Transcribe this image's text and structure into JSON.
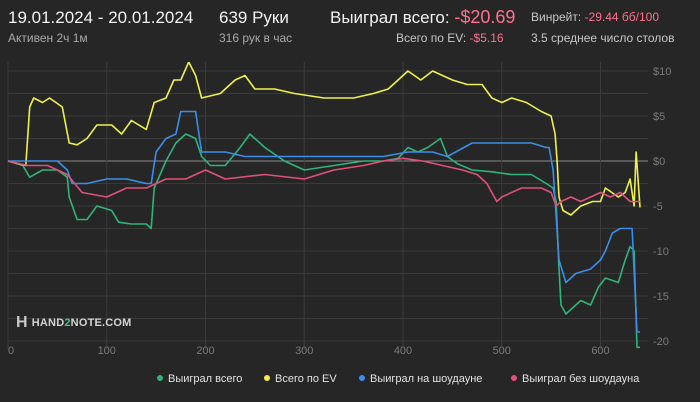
{
  "header": {
    "date_range": "19.01.2024 - 20.01.2024",
    "active_time": "Активен 2ч 1м",
    "hands": "639 Руки",
    "hands_rate": "316 рук в час",
    "won_label": "Выиграл всего:",
    "won_value": "-$20.69",
    "ev_label": "Всего по EV:",
    "ev_value": "-$5.16",
    "winrate_label": "Винрейт:",
    "winrate_value": "-29.44 бб/100",
    "avg_tables": "3.5 среднее число столов"
  },
  "watermark": {
    "prefix": "HAND",
    "two": "2",
    "suffix": "NOTE.COM"
  },
  "colors": {
    "background": "#262626",
    "grid": "#3a3a3a",
    "zero_line": "#8a8a8a",
    "won": "#2fb47c",
    "ev": "#f0f04a",
    "showdown": "#3a8ee8",
    "nonshowdown": "#e0507a",
    "negative": "#ff6f8f"
  },
  "chart_data": {
    "type": "line",
    "xlim": [
      0,
      640
    ],
    "ylim": [
      -21,
      11
    ],
    "x_ticks": [
      0,
      100,
      200,
      300,
      400,
      500,
      600
    ],
    "y_ticks": [
      -20,
      -15,
      -10,
      -5,
      0,
      5,
      10
    ],
    "x_tick_labels": [
      "0",
      "100",
      "200",
      "300",
      "400",
      "500",
      "600"
    ],
    "y_tick_labels": [
      "-20",
      "-15",
      "-10",
      "-5",
      "$0",
      "$5",
      "$10"
    ],
    "grid": true,
    "legend_position": "bottom",
    "series": [
      {
        "name": "Выиграл всего",
        "color": "#2fb47c",
        "points": [
          [
            0,
            0
          ],
          [
            15,
            -0.5
          ],
          [
            22,
            -1.8
          ],
          [
            35,
            -1
          ],
          [
            50,
            -1
          ],
          [
            60,
            -1.8
          ],
          [
            62,
            -4
          ],
          [
            70,
            -6.5
          ],
          [
            80,
            -6.5
          ],
          [
            90,
            -5
          ],
          [
            105,
            -5.5
          ],
          [
            112,
            -6.8
          ],
          [
            125,
            -7
          ],
          [
            140,
            -7
          ],
          [
            145,
            -7.5
          ],
          [
            148,
            -3
          ],
          [
            160,
            0
          ],
          [
            170,
            2
          ],
          [
            180,
            3
          ],
          [
            190,
            2.5
          ],
          [
            196,
            0.5
          ],
          [
            205,
            -0.5
          ],
          [
            220,
            -0.5
          ],
          [
            235,
            1.5
          ],
          [
            245,
            3
          ],
          [
            260,
            1.5
          ],
          [
            280,
            0
          ],
          [
            300,
            -1
          ],
          [
            330,
            -0.5
          ],
          [
            360,
            0
          ],
          [
            380,
            0
          ],
          [
            395,
            0.3
          ],
          [
            405,
            1.5
          ],
          [
            415,
            1
          ],
          [
            425,
            1.5
          ],
          [
            438,
            2.5
          ],
          [
            445,
            0.5
          ],
          [
            455,
            -0.3
          ],
          [
            470,
            -1
          ],
          [
            490,
            -1.2
          ],
          [
            510,
            -1.5
          ],
          [
            530,
            -1.5
          ],
          [
            545,
            -2.5
          ],
          [
            552,
            -3
          ],
          [
            555,
            -4.5
          ],
          [
            558,
            -12
          ],
          [
            560,
            -16
          ],
          [
            565,
            -17
          ],
          [
            580,
            -15.5
          ],
          [
            590,
            -16
          ],
          [
            598,
            -14
          ],
          [
            605,
            -13
          ],
          [
            618,
            -13.5
          ],
          [
            625,
            -11
          ],
          [
            630,
            -9.5
          ],
          [
            634,
            -10
          ],
          [
            637,
            -20.7
          ],
          [
            640,
            -20.7
          ]
        ]
      },
      {
        "name": "Всего по EV",
        "color": "#f0f04a",
        "points": [
          [
            0,
            0
          ],
          [
            18,
            -0.5
          ],
          [
            22,
            6
          ],
          [
            26,
            7
          ],
          [
            35,
            6.5
          ],
          [
            42,
            7
          ],
          [
            55,
            6
          ],
          [
            62,
            2
          ],
          [
            70,
            1.8
          ],
          [
            80,
            2.5
          ],
          [
            90,
            4
          ],
          [
            105,
            4
          ],
          [
            115,
            3
          ],
          [
            125,
            4.5
          ],
          [
            140,
            3.5
          ],
          [
            148,
            6.5
          ],
          [
            160,
            7
          ],
          [
            168,
            9
          ],
          [
            175,
            9
          ],
          [
            183,
            11
          ],
          [
            190,
            9.5
          ],
          [
            196,
            7
          ],
          [
            215,
            7.5
          ],
          [
            230,
            9
          ],
          [
            240,
            9.5
          ],
          [
            250,
            8
          ],
          [
            270,
            8
          ],
          [
            290,
            7.5
          ],
          [
            320,
            7
          ],
          [
            350,
            7
          ],
          [
            370,
            7.5
          ],
          [
            385,
            8
          ],
          [
            395,
            9
          ],
          [
            405,
            10
          ],
          [
            418,
            9
          ],
          [
            430,
            10
          ],
          [
            440,
            9.5
          ],
          [
            450,
            9
          ],
          [
            465,
            8.5
          ],
          [
            480,
            8.5
          ],
          [
            490,
            7
          ],
          [
            500,
            6.5
          ],
          [
            510,
            7
          ],
          [
            525,
            6.5
          ],
          [
            540,
            5.5
          ],
          [
            550,
            5
          ],
          [
            554,
            3
          ],
          [
            556,
            0
          ],
          [
            558,
            -4
          ],
          [
            562,
            -5.5
          ],
          [
            570,
            -6
          ],
          [
            580,
            -5
          ],
          [
            592,
            -4.5
          ],
          [
            600,
            -4.5
          ],
          [
            605,
            -3
          ],
          [
            618,
            -4
          ],
          [
            625,
            -3.5
          ],
          [
            630,
            -2
          ],
          [
            634,
            -5
          ],
          [
            636,
            1
          ],
          [
            640,
            -5.16
          ]
        ]
      },
      {
        "name": "Выиграл на шоудауне",
        "color": "#3a8ee8",
        "points": [
          [
            0,
            0
          ],
          [
            20,
            0
          ],
          [
            30,
            0
          ],
          [
            50,
            0
          ],
          [
            60,
            -1
          ],
          [
            65,
            -2.5
          ],
          [
            80,
            -2.5
          ],
          [
            100,
            -2
          ],
          [
            120,
            -2
          ],
          [
            140,
            -2.5
          ],
          [
            145,
            -2.5
          ],
          [
            150,
            1
          ],
          [
            160,
            2.5
          ],
          [
            170,
            3
          ],
          [
            175,
            5.5
          ],
          [
            185,
            5.5
          ],
          [
            190,
            5.5
          ],
          [
            196,
            1
          ],
          [
            220,
            1
          ],
          [
            240,
            0.5
          ],
          [
            260,
            0.5
          ],
          [
            290,
            0.5
          ],
          [
            320,
            0.5
          ],
          [
            350,
            0.5
          ],
          [
            380,
            0.5
          ],
          [
            405,
            1
          ],
          [
            430,
            1
          ],
          [
            445,
            0.5
          ],
          [
            470,
            2
          ],
          [
            490,
            2
          ],
          [
            510,
            2
          ],
          [
            530,
            2
          ],
          [
            545,
            1.5
          ],
          [
            548,
            1.5
          ],
          [
            552,
            -1
          ],
          [
            558,
            -11
          ],
          [
            565,
            -13.5
          ],
          [
            575,
            -12.5
          ],
          [
            590,
            -12
          ],
          [
            600,
            -11
          ],
          [
            605,
            -10
          ],
          [
            612,
            -8
          ],
          [
            620,
            -7.5
          ],
          [
            632,
            -7.5
          ],
          [
            637,
            -19
          ],
          [
            640,
            -19
          ]
        ]
      },
      {
        "name": "Выиграл без шоудауна",
        "color": "#e0507a",
        "points": [
          [
            0,
            0
          ],
          [
            20,
            -0.5
          ],
          [
            40,
            -0.5
          ],
          [
            60,
            -1.5
          ],
          [
            75,
            -3.5
          ],
          [
            100,
            -4
          ],
          [
            120,
            -3
          ],
          [
            140,
            -3
          ],
          [
            160,
            -2
          ],
          [
            180,
            -2
          ],
          [
            200,
            -1
          ],
          [
            220,
            -2
          ],
          [
            260,
            -1.5
          ],
          [
            300,
            -2
          ],
          [
            330,
            -1
          ],
          [
            360,
            -0.5
          ],
          [
            380,
            0
          ],
          [
            400,
            0.3
          ],
          [
            420,
            0
          ],
          [
            440,
            -0.5
          ],
          [
            460,
            -1
          ],
          [
            475,
            -1.5
          ],
          [
            485,
            -2.5
          ],
          [
            495,
            -4.5
          ],
          [
            500,
            -4
          ],
          [
            520,
            -3
          ],
          [
            540,
            -3
          ],
          [
            550,
            -3.5
          ],
          [
            555,
            -5
          ],
          [
            560,
            -4.5
          ],
          [
            570,
            -4
          ],
          [
            580,
            -4.5
          ],
          [
            590,
            -4
          ],
          [
            600,
            -3.5
          ],
          [
            610,
            -4
          ],
          [
            620,
            -3.5
          ],
          [
            630,
            -4.5
          ],
          [
            640,
            -4.5
          ]
        ]
      }
    ]
  }
}
